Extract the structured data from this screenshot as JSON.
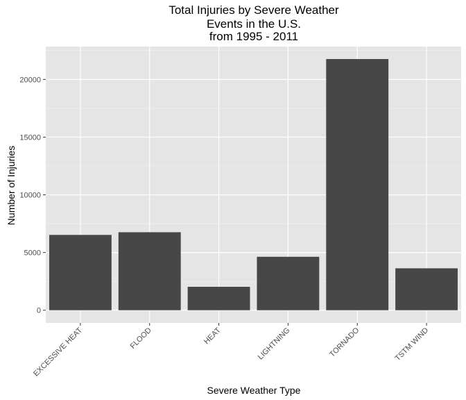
{
  "chart_data": {
    "type": "bar",
    "title": [
      "Total Injuries by Severe Weather",
      "Events in the U.S.",
      "from 1995 - 2011"
    ],
    "xlabel": "Severe Weather Type",
    "ylabel": "Number of Injuries",
    "categories": [
      "EXCESSIVE HEAT",
      "FLOOD",
      "HEAT",
      "LIGHTNING",
      "TORNADO",
      "TSTM WIND"
    ],
    "values": [
      6525,
      6759,
      2030,
      4631,
      21765,
      3631
    ],
    "ylim": [
      -1100,
      22850
    ],
    "yticks": [
      0,
      5000,
      10000,
      15000,
      20000
    ],
    "ytick_labels": [
      "0",
      "5000",
      "10000",
      "15000",
      "20000"
    ],
    "grid": true,
    "colors": {
      "panel": "#e5e5e5",
      "grid_major": "#ffffff",
      "grid_minor": "#f2f2f2",
      "bar": "#474747",
      "tick_text": "#4d4d4d"
    }
  }
}
